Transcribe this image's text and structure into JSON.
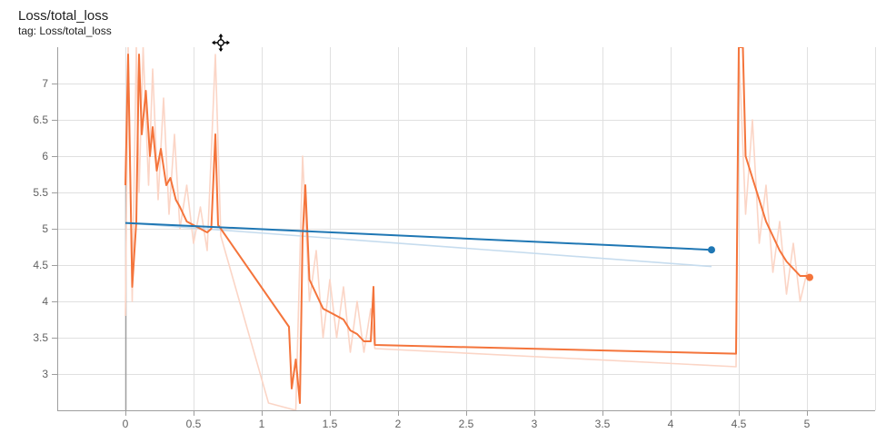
{
  "header": {
    "title": "Loss/total_loss",
    "tag": "tag: Loss/total_loss"
  },
  "chart_data": {
    "type": "line",
    "title": "Loss/total_loss",
    "xlabel": "",
    "ylabel": "",
    "xlim": [
      -0.5,
      5.5
    ],
    "ylim": [
      2.5,
      7.5
    ],
    "x_ticks": [
      0,
      0.5,
      1,
      1.5,
      2,
      2.5,
      3,
      3.5,
      4,
      4.5,
      5
    ],
    "x_tick_labels": [
      "0",
      "0.5",
      "1",
      "1.5",
      "2",
      "2.5",
      "3",
      "3.5",
      "4",
      "4.5",
      "5"
    ],
    "y_ticks": [
      3,
      3.5,
      4,
      4.5,
      5,
      5.5,
      6,
      6.5,
      7
    ],
    "y_tick_labels": [
      "3",
      "3.5",
      "4",
      "4.5",
      "5",
      "5.5",
      "6",
      "6.5",
      "7"
    ],
    "grid": true,
    "colors": {
      "orange": "#f4743b",
      "orange_raw": "#fbd5c6",
      "blue": "#1f77b4",
      "blue_raw": "#c6dcee",
      "grid": "#e0e0e0",
      "axis": "#9e9e9e"
    },
    "series": [
      {
        "color": "orange",
        "smoothed": [
          [
            0.0,
            5.6
          ],
          [
            0.02,
            7.4
          ],
          [
            0.05,
            4.2
          ],
          [
            0.08,
            5.1
          ],
          [
            0.1,
            7.4
          ],
          [
            0.12,
            6.3
          ],
          [
            0.15,
            6.9
          ],
          [
            0.18,
            6.0
          ],
          [
            0.2,
            6.4
          ],
          [
            0.23,
            5.8
          ],
          [
            0.26,
            6.1
          ],
          [
            0.3,
            5.6
          ],
          [
            0.33,
            5.7
          ],
          [
            0.37,
            5.4
          ],
          [
            0.4,
            5.3
          ],
          [
            0.45,
            5.1
          ],
          [
            0.5,
            5.05
          ],
          [
            0.55,
            5.0
          ],
          [
            0.6,
            4.95
          ],
          [
            0.63,
            5.0
          ],
          [
            0.66,
            6.3
          ],
          [
            0.68,
            5.05
          ],
          [
            0.7,
            5.0
          ],
          [
            1.2,
            3.65
          ],
          [
            1.22,
            2.8
          ],
          [
            1.25,
            3.2
          ],
          [
            1.28,
            2.6
          ],
          [
            1.3,
            4.9
          ],
          [
            1.32,
            5.6
          ],
          [
            1.35,
            4.3
          ],
          [
            1.4,
            4.1
          ],
          [
            1.45,
            3.9
          ],
          [
            1.5,
            3.85
          ],
          [
            1.55,
            3.8
          ],
          [
            1.6,
            3.75
          ],
          [
            1.65,
            3.6
          ],
          [
            1.7,
            3.55
          ],
          [
            1.75,
            3.45
          ],
          [
            1.8,
            3.45
          ],
          [
            1.82,
            4.2
          ],
          [
            1.83,
            3.4
          ],
          [
            4.48,
            3.28
          ],
          [
            4.5,
            7.5
          ],
          [
            4.53,
            7.5
          ],
          [
            4.55,
            6.0
          ],
          [
            4.6,
            5.7
          ],
          [
            4.65,
            5.4
          ],
          [
            4.7,
            5.1
          ],
          [
            4.75,
            4.9
          ],
          [
            4.8,
            4.7
          ],
          [
            4.85,
            4.55
          ],
          [
            4.9,
            4.45
          ],
          [
            4.95,
            4.35
          ],
          [
            5.0,
            4.35
          ],
          [
            5.02,
            4.33
          ]
        ],
        "raw": [
          [
            0.0,
            3.8
          ],
          [
            0.02,
            7.5
          ],
          [
            0.05,
            4.0
          ],
          [
            0.08,
            7.5
          ],
          [
            0.1,
            5.5
          ],
          [
            0.13,
            7.5
          ],
          [
            0.17,
            5.6
          ],
          [
            0.2,
            7.2
          ],
          [
            0.24,
            5.4
          ],
          [
            0.28,
            6.8
          ],
          [
            0.32,
            5.2
          ],
          [
            0.36,
            6.3
          ],
          [
            0.4,
            5.0
          ],
          [
            0.45,
            5.6
          ],
          [
            0.5,
            4.8
          ],
          [
            0.55,
            5.3
          ],
          [
            0.6,
            4.7
          ],
          [
            0.66,
            7.4
          ],
          [
            0.7,
            4.9
          ],
          [
            1.05,
            2.6
          ],
          [
            1.25,
            2.5
          ],
          [
            1.3,
            6.0
          ],
          [
            1.35,
            4.0
          ],
          [
            1.4,
            4.7
          ],
          [
            1.45,
            3.5
          ],
          [
            1.5,
            4.3
          ],
          [
            1.55,
            3.5
          ],
          [
            1.6,
            4.2
          ],
          [
            1.65,
            3.3
          ],
          [
            1.7,
            4.0
          ],
          [
            1.75,
            3.3
          ],
          [
            1.8,
            3.9
          ],
          [
            1.83,
            3.35
          ],
          [
            4.48,
            3.1
          ],
          [
            4.5,
            7.5
          ],
          [
            4.55,
            5.2
          ],
          [
            4.6,
            6.5
          ],
          [
            4.65,
            4.8
          ],
          [
            4.7,
            5.6
          ],
          [
            4.75,
            4.4
          ],
          [
            4.8,
            5.1
          ],
          [
            4.85,
            4.1
          ],
          [
            4.9,
            4.8
          ],
          [
            4.95,
            4.0
          ],
          [
            5.0,
            4.4
          ],
          [
            5.02,
            4.3
          ]
        ]
      },
      {
        "color": "blue",
        "smoothed": [
          [
            0.0,
            5.08
          ],
          [
            4.3,
            4.71
          ]
        ],
        "raw": [
          [
            0.0,
            5.08
          ],
          [
            4.3,
            4.48
          ]
        ],
        "end_marker": [
          4.3,
          4.71
        ]
      }
    ]
  }
}
